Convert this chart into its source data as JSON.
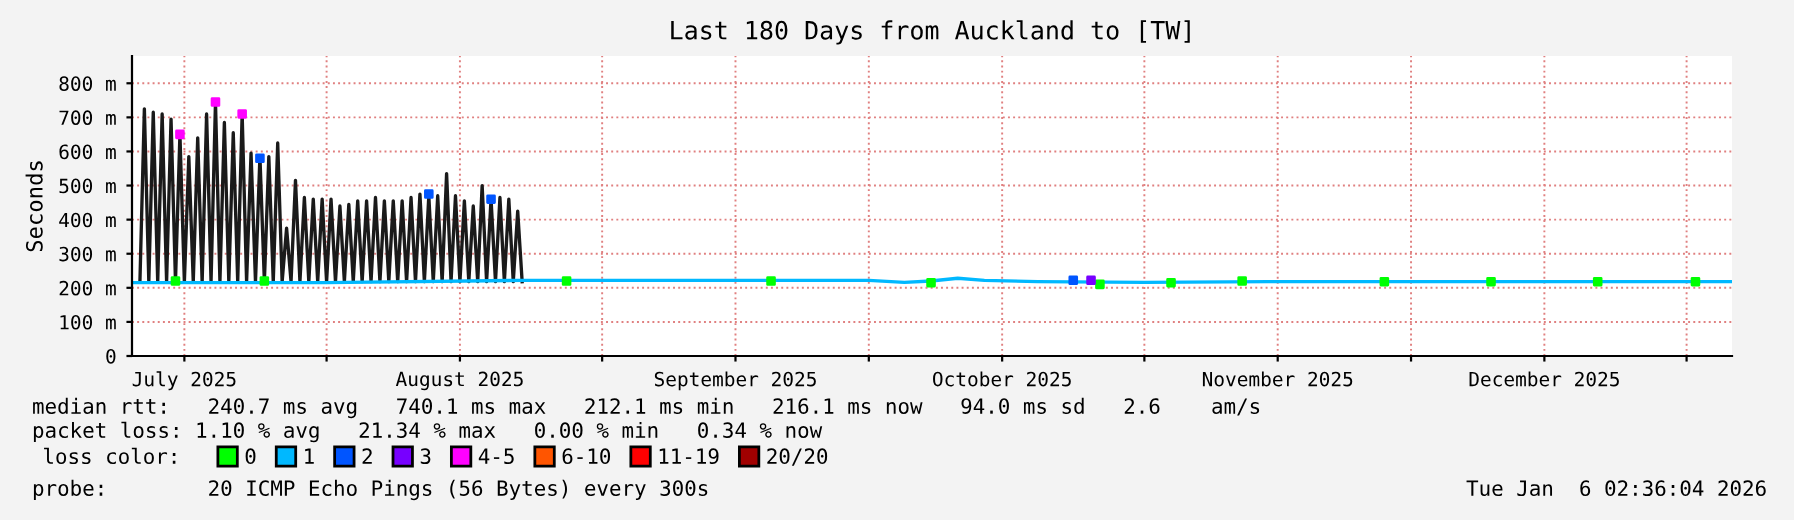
{
  "chart_data": {
    "type": "line",
    "title": "Last 180 Days from Auckland to [TW]",
    "ylabel": "Seconds",
    "xlim": [
      "2025-07-10T02:36",
      "2026-01-06T02:36"
    ],
    "xticks": [
      {
        "value": "2025-07-16",
        "label": "July 2025"
      },
      {
        "value": "2025-08-01",
        "label": null
      },
      {
        "value": "2025-08-16",
        "label": "August 2025"
      },
      {
        "value": "2025-09-01",
        "label": null
      },
      {
        "value": "2025-09-16",
        "label": "September 2025"
      },
      {
        "value": "2025-10-01",
        "label": null
      },
      {
        "value": "2025-10-16",
        "label": "October 2025"
      },
      {
        "value": "2025-11-01",
        "label": null
      },
      {
        "value": "2025-11-16",
        "label": "November 2025"
      },
      {
        "value": "2025-12-01",
        "label": null
      },
      {
        "value": "2025-12-16",
        "label": "December 2025"
      },
      {
        "value": "2026-01-01",
        "label": null
      }
    ],
    "ylim": [
      0,
      880
    ],
    "yticks": [
      0,
      {
        "value": 100,
        "label": "100 m"
      },
      {
        "value": 200,
        "label": "200 m"
      },
      {
        "value": 300,
        "label": "300 m"
      },
      {
        "value": 400,
        "label": "400 m"
      },
      {
        "value": 500,
        "label": "500 m"
      },
      {
        "value": 600,
        "label": "600 m"
      },
      {
        "value": 700,
        "label": "700 m"
      },
      {
        "value": 800,
        "label": "800 m"
      }
    ],
    "grid": true,
    "legend": "bottom",
    "legend_title": "loss color:",
    "series": [
      {
        "color": "#1a1a1a",
        "x": [
          "2025-07-11T00:00",
          "2025-07-11T12:00",
          "2025-07-12T00:00",
          "2025-07-12T12:00",
          "2025-07-13T00:00",
          "2025-07-13T12:00",
          "2025-07-14T00:00",
          "2025-07-14T12:00",
          "2025-07-15T00:00",
          "2025-07-15T12:00",
          "2025-07-16T00:00",
          "2025-07-16T12:00",
          "2025-07-17T00:00",
          "2025-07-17T12:00",
          "2025-07-18T00:00",
          "2025-07-18T12:00",
          "2025-07-19T00:00",
          "2025-07-19T12:00",
          "2025-07-20T00:00",
          "2025-07-20T12:00",
          "2025-07-21T00:00",
          "2025-07-21T12:00",
          "2025-07-22T00:00",
          "2025-07-22T12:00",
          "2025-07-23T00:00",
          "2025-07-23T12:00",
          "2025-07-24T00:00",
          "2025-07-24T12:00",
          "2025-07-25T00:00",
          "2025-07-25T12:00",
          "2025-07-26T00:00",
          "2025-07-26T12:00",
          "2025-07-27T00:00",
          "2025-07-27T12:00",
          "2025-07-28T00:00",
          "2025-07-28T12:00",
          "2025-07-29T00:00",
          "2025-07-29T12:00",
          "2025-07-30T00:00",
          "2025-07-30T12:00",
          "2025-07-31T00:00",
          "2025-07-31T12:00",
          "2025-08-01T00:00",
          "2025-08-01T12:00",
          "2025-08-02T00:00",
          "2025-08-02T12:00",
          "2025-08-03T00:00",
          "2025-08-03T12:00",
          "2025-08-04T00:00",
          "2025-08-04T12:00",
          "2025-08-05T00:00",
          "2025-08-05T12:00",
          "2025-08-06T00:00",
          "2025-08-06T12:00",
          "2025-08-07T00:00",
          "2025-08-07T12:00",
          "2025-08-08T00:00",
          "2025-08-08T12:00",
          "2025-08-09T00:00",
          "2025-08-09T12:00",
          "2025-08-10T00:00",
          "2025-08-10T12:00",
          "2025-08-11T00:00",
          "2025-08-11T12:00",
          "2025-08-12T00:00",
          "2025-08-12T12:00",
          "2025-08-13T00:00",
          "2025-08-13T12:00",
          "2025-08-14T00:00",
          "2025-08-14T12:00",
          "2025-08-15T00:00",
          "2025-08-15T12:00",
          "2025-08-16T00:00",
          "2025-08-16T12:00",
          "2025-08-17T00:00",
          "2025-08-17T12:00",
          "2025-08-18T00:00",
          "2025-08-18T12:00",
          "2025-08-19T00:00",
          "2025-08-19T12:00",
          "2025-08-20T00:00",
          "2025-08-20T12:00",
          "2025-08-21T00:00",
          "2025-08-21T12:00",
          "2025-08-22T00:00",
          "2025-08-22T12:00",
          "2025-08-23T00:00"
        ],
        "values": [
          218,
          725,
          218,
          715,
          218,
          710,
          218,
          695,
          218,
          650,
          218,
          585,
          218,
          640,
          218,
          710,
          218,
          745,
          218,
          685,
          218,
          655,
          218,
          710,
          218,
          595,
          218,
          585,
          218,
          585,
          218,
          625,
          218,
          375,
          218,
          515,
          218,
          465,
          218,
          460,
          218,
          460,
          218,
          460,
          218,
          440,
          218,
          445,
          218,
          455,
          218,
          455,
          218,
          465,
          218,
          455,
          218,
          455,
          218,
          455,
          218,
          465,
          218,
          475,
          218,
          470,
          218,
          470,
          218,
          535,
          218,
          470,
          218,
          455,
          218,
          440,
          218,
          500,
          218,
          460,
          218,
          465,
          218,
          460,
          218,
          425,
          218
        ]
      },
      {
        "name": "0",
        "type": "scatter",
        "color": "#00ff00",
        "x": [
          "2025-07-15",
          "2025-07-25",
          "2025-08-28",
          "2025-09-20",
          "2025-10-08",
          "2025-10-27",
          "2025-11-04",
          "2025-11-12",
          "2025-11-28",
          "2025-12-10",
          "2025-12-22",
          "2026-01-02"
        ],
        "values": [
          220,
          220,
          220,
          220,
          215,
          210,
          215,
          220,
          218,
          218,
          218,
          218
        ]
      },
      {
        "name": "1",
        "color": "#00b8ff",
        "x": [
          "2025-07-10T03:00",
          "2025-08-01",
          "2025-08-23",
          "2025-09-10",
          "2025-10-01",
          "2025-10-05",
          "2025-10-08",
          "2025-10-11",
          "2025-10-14",
          "2025-10-20",
          "2025-11-01",
          "2025-11-15",
          "2025-12-01",
          "2025-12-20",
          "2026-01-06"
        ],
        "values": [
          215,
          215,
          222,
          222,
          222,
          216,
          220,
          228,
          222,
          218,
          216,
          218,
          218,
          218,
          218
        ]
      },
      {
        "name": "2",
        "type": "scatter",
        "color": "#0055ff",
        "x": [
          "2025-07-24T12:00",
          "2025-08-12T12:00",
          "2025-08-19T12:00",
          "2025-10-24"
        ],
        "values": [
          580,
          475,
          460,
          222
        ]
      },
      {
        "name": "3",
        "type": "scatter",
        "color": "#7700ff",
        "x": [
          "2025-10-26"
        ],
        "values": [
          222
        ]
      },
      {
        "name": "4-5",
        "type": "scatter",
        "color": "#ff00ff",
        "x": [
          "2025-07-15T12:00",
          "2025-07-19T12:00",
          "2025-07-22T12:00"
        ],
        "values": [
          650,
          745,
          710
        ]
      },
      {
        "name": "6-10",
        "type": "scatter",
        "color": "#ff5500"
      },
      {
        "name": "11-19",
        "type": "scatter",
        "color": "#ff0000"
      },
      {
        "name": "20/20",
        "type": "scatter",
        "color": "#a10000"
      }
    ],
    "annotations": [
      "median rtt:   240.7 ms avg   740.1 ms max   212.1 ms min   216.1 ms now   94.0 ms sd   2.6    am/s",
      "packet loss: 1.10 % avg   21.34 % max   0.00 % min   0.34 % now",
      "probe:        20 ICMP Echo Pings (56 Bytes) every 300s",
      "Tue Jan  6 02:36:04 2026"
    ]
  }
}
